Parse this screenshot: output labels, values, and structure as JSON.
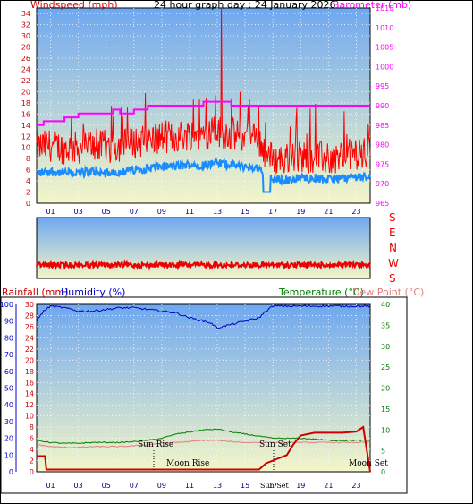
{
  "title": "24 hour graph day : 24 January 2026",
  "colors": {
    "frame": "#000000",
    "windspeed": "#e00000",
    "gust": "#ff0000",
    "windavg": "#1a8cff",
    "barometer": "#ff00ff",
    "winddir": "#ee0000",
    "rainfall": "#cc0000",
    "humidity": "#0000cc",
    "temperature": "#008000",
    "dewpoint": "#e08080",
    "bg_top": "#6fa8f0",
    "bg_bottom": "#f4f6c8"
  },
  "top_chart": {
    "left_label": "Windspeed (mph)",
    "right_label": "Barometer (mb)",
    "left_ticks": [
      "0",
      "2",
      "4",
      "6",
      "8",
      "10",
      "12",
      "14",
      "16",
      "18",
      "20",
      "22",
      "24",
      "26",
      "28",
      "30",
      "32",
      "34"
    ],
    "right_ticks": [
      "965",
      "970",
      "975",
      "980",
      "985",
      "990",
      "995",
      "1000",
      "1005",
      "1010",
      "1015"
    ],
    "x_ticks": [
      "01",
      "03",
      "05",
      "07",
      "09",
      "11",
      "13",
      "15",
      "17",
      "19",
      "21",
      "23"
    ]
  },
  "dir_chart": {
    "labels": [
      "S",
      "E",
      "N",
      "W",
      "S"
    ]
  },
  "bottom_chart": {
    "rain_label": "Rainfall (mm)",
    "hum_label": "Humidity (%)",
    "temp_label": "Temperature (°C)",
    "dew_label": "Dew Point (°C)",
    "rain_ticks": [
      "0",
      "2",
      "4",
      "6",
      "8",
      "10",
      "12",
      "14",
      "16",
      "18",
      "20",
      "22",
      "24",
      "26",
      "28",
      "30"
    ],
    "hum_ticks": [
      "0",
      "10",
      "20",
      "30",
      "40",
      "50",
      "60",
      "70",
      "80",
      "90",
      "100"
    ],
    "temp_ticks": [
      "0",
      "5",
      "10",
      "15",
      "20",
      "25",
      "30",
      "35",
      "40"
    ],
    "x_ticks": [
      "01",
      "03",
      "05",
      "07",
      "09",
      "11",
      "13",
      "15",
      "17",
      "19",
      "21",
      "23"
    ],
    "sun_rise": "Sun Rise",
    "sun_set": "Sun Set",
    "moon_rise": "Moon Rise",
    "moon_set": "Moon Set",
    "sun_set_axis": "Sun Set"
  },
  "chart_data": [
    {
      "type": "line",
      "title": "24 hour graph day : 24 January 2026",
      "xlabel": "",
      "ylabel": "Windspeed (mph)",
      "y2label": "Barometer (mb)",
      "ylim": [
        0,
        35
      ],
      "y2lim": [
        965,
        1015
      ],
      "x_range_hours": [
        0,
        24
      ],
      "series": [
        {
          "name": "Windspeed (mph)",
          "axis": "left",
          "x": [
            0,
            1,
            2,
            3,
            4,
            5,
            6,
            7,
            8,
            9,
            10,
            11,
            12,
            13,
            14,
            15,
            16,
            16.5,
            17,
            18,
            19,
            20,
            21,
            22,
            23,
            24
          ],
          "values": [
            9,
            9.5,
            9,
            9,
            9.5,
            9,
            9.5,
            10,
            10.5,
            11,
            11,
            11.5,
            11.5,
            12,
            11.5,
            11,
            10.5,
            8,
            7,
            7,
            7.5,
            7.5,
            7,
            7.5,
            8,
            8
          ]
        },
        {
          "name": "Barometer (mb)",
          "axis": "right",
          "x": [
            0,
            0.5,
            1,
            2,
            3,
            4,
            5,
            5.5,
            6,
            7,
            8,
            9,
            10,
            11,
            12,
            13,
            14,
            15,
            16,
            17,
            18,
            19,
            20,
            21,
            22,
            23,
            24
          ],
          "values": [
            985,
            986,
            986,
            987,
            988,
            988,
            988,
            989,
            988,
            989,
            990,
            990,
            990,
            990,
            991,
            991,
            990,
            990,
            990,
            990,
            990,
            990,
            990,
            990,
            990,
            990,
            990
          ]
        }
      ],
      "grid": true
    },
    {
      "type": "line",
      "title": "",
      "ylabel": "",
      "y_categories": [
        "S",
        "E",
        "N",
        "W",
        "S"
      ],
      "series": [
        {
          "name": "",
          "x": [
            0,
            3,
            6,
            9,
            12,
            15,
            18,
            21,
            24
          ],
          "values": [
            0.0,
            0.0,
            0.0,
            0.0,
            0.0,
            0.0,
            0.0,
            0.0,
            0.0
          ]
        }
      ]
    },
    {
      "type": "line",
      "title": "",
      "ylabel": "Rainfall (mm)",
      "y2label": "Temperature (°C)",
      "ylim": [
        0,
        30
      ],
      "humidity_lim": [
        0,
        100
      ],
      "y2lim": [
        0,
        40
      ],
      "x_range_hours": [
        0,
        24
      ],
      "series": [
        {
          "name": "Humidity (%)",
          "axis": "humidity",
          "x": [
            0,
            0.5,
            1,
            2,
            3,
            4,
            5,
            6,
            7,
            8,
            9,
            10,
            11,
            12,
            12.5,
            13,
            14,
            15,
            16,
            16.5,
            17,
            18,
            19,
            20,
            21,
            22,
            23,
            24
          ],
          "values": [
            90,
            96,
            99,
            98,
            96,
            96,
            97,
            98,
            98,
            97,
            96,
            95,
            92,
            90,
            89,
            86,
            88,
            90,
            92,
            96,
            99,
            99,
            99,
            99,
            99,
            99,
            99,
            99
          ]
        },
        {
          "name": "Temperature (°C)",
          "axis": "right",
          "x": [
            0,
            1,
            2,
            3,
            4,
            5,
            6,
            7,
            8,
            9,
            10,
            11,
            12,
            13,
            14,
            15,
            16,
            17,
            18,
            19,
            20,
            21,
            22,
            23,
            24
          ],
          "values": [
            7.5,
            7,
            6.8,
            6.8,
            7,
            7,
            7,
            7.2,
            7.5,
            8,
            9,
            9.5,
            10,
            10.2,
            9.5,
            9,
            8.5,
            8,
            8,
            8,
            7.8,
            7.5,
            7.5,
            7.5,
            7.5
          ]
        },
        {
          "name": "Dew Point (°C)",
          "axis": "right",
          "x": [
            0,
            1,
            2,
            3,
            4,
            5,
            6,
            7,
            8,
            9,
            10,
            11,
            12,
            13,
            14,
            15,
            16,
            17,
            18,
            19,
            20,
            21,
            22,
            23,
            24
          ],
          "values": [
            6.5,
            6,
            5.8,
            5.8,
            6,
            6,
            6,
            6.2,
            6.5,
            6.8,
            7,
            7.2,
            7.5,
            7.5,
            7.2,
            7,
            7,
            7,
            7,
            7,
            7,
            7,
            7,
            7,
            7
          ]
        },
        {
          "name": "Rainfall (mm)",
          "axis": "left",
          "x": [
            0,
            0.6,
            0.7,
            16,
            16.5,
            17,
            18,
            18.5,
            19,
            20,
            21,
            22,
            23,
            23.5,
            24
          ],
          "values": [
            2.8,
            2.8,
            0.4,
            0.4,
            1.5,
            2,
            3,
            5,
            6.5,
            7,
            7,
            7,
            7.2,
            8,
            0
          ]
        }
      ],
      "annotations": [
        "Sun Rise",
        "Sun Set",
        "Moon Rise",
        "Moon Set"
      ],
      "grid": true
    }
  ]
}
